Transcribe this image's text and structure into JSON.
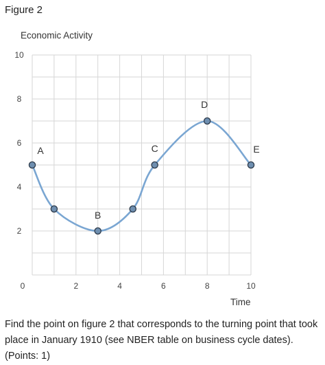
{
  "figure_label": "Figure 2",
  "question": {
    "text": "Find the point on figure 2 that corresponds to the turning point that took place in January 1910 (see NBER table on business cycle dates).",
    "points": "(Points: 1)"
  },
  "chart_data": {
    "type": "line",
    "title": "",
    "ylabel": "Economic Activity",
    "xlabel": "Time",
    "xlim": [
      0,
      10
    ],
    "ylim": [
      0,
      10
    ],
    "x_ticks": [
      "0",
      "2",
      "4",
      "6",
      "8",
      "10"
    ],
    "y_ticks": [
      "2",
      "4",
      "6",
      "8",
      "10"
    ],
    "grid": true,
    "legend": "none",
    "line_color": "#7aa6d2",
    "marker_color": "#6f8fb0",
    "points": [
      {
        "x": 0,
        "y": 5,
        "label": "A"
      },
      {
        "x": 1,
        "y": 3,
        "label": ""
      },
      {
        "x": 3,
        "y": 2,
        "label": "B"
      },
      {
        "x": 4.6,
        "y": 3,
        "label": ""
      },
      {
        "x": 5.6,
        "y": 5,
        "label": "C"
      },
      {
        "x": 8,
        "y": 7,
        "label": "D"
      },
      {
        "x": 10,
        "y": 5,
        "label": "E"
      }
    ]
  }
}
